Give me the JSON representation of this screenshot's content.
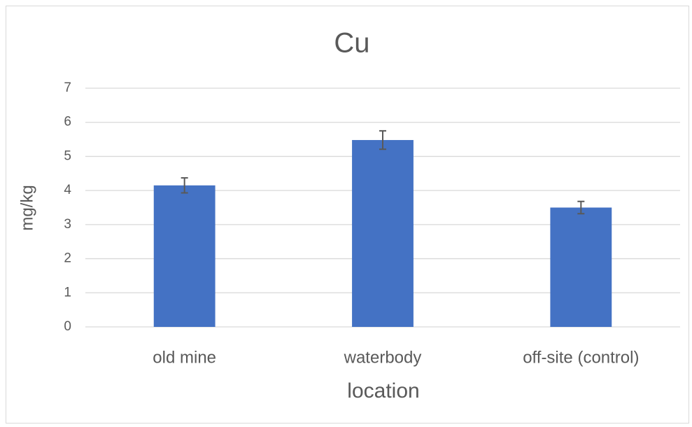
{
  "chart_data": {
    "type": "bar",
    "title": "Cu",
    "x_label": "location",
    "y_label": "mg/kg",
    "categories": [
      "old mine",
      "waterbody",
      "off-site (control)"
    ],
    "values": [
      4.15,
      5.48,
      3.5
    ],
    "errors": [
      0.22,
      0.27,
      0.18
    ],
    "color": "#4472c4",
    "error_color": "#595959",
    "ylim": [
      0,
      7
    ],
    "yticks": [
      0,
      1,
      2,
      3,
      4,
      5,
      6,
      7
    ],
    "grid": true
  }
}
